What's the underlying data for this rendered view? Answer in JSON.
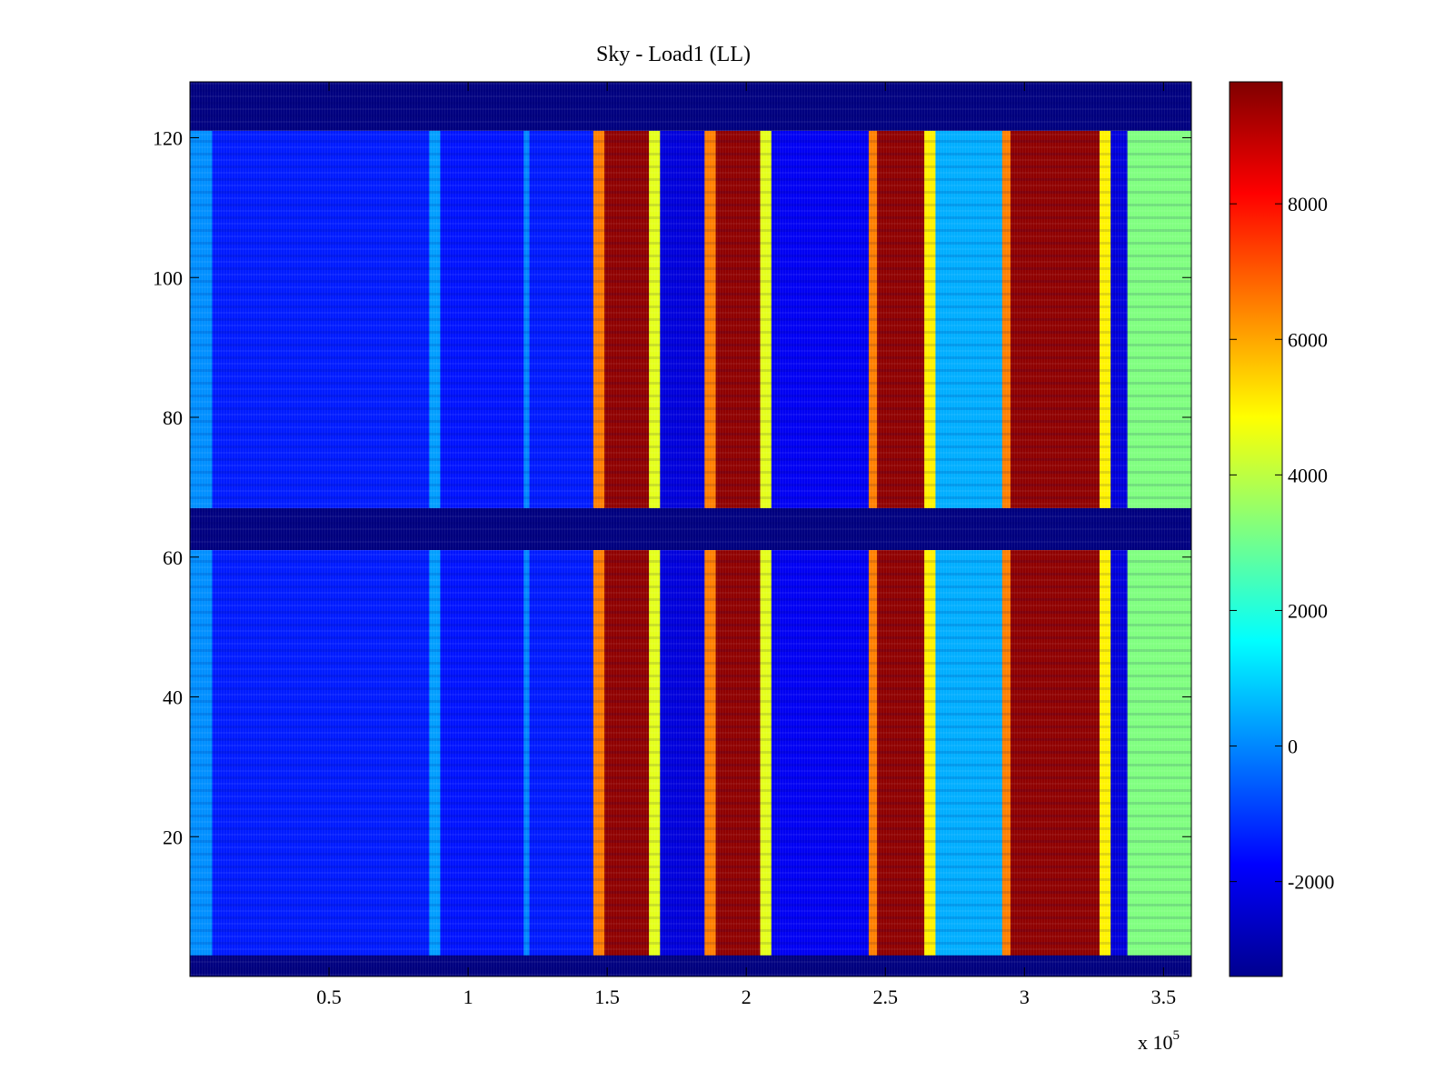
{
  "chart_data": {
    "type": "heatmap",
    "title": "Sky - Load1 (LL)",
    "xlabel": "",
    "ylabel": "",
    "x_multiplier_label": {
      "base": "x 10",
      "exponent": "5"
    },
    "xlim": [
      0,
      360000
    ],
    "ylim": [
      0,
      128
    ],
    "x_ticks": [
      {
        "value": 50000,
        "label": "0.5"
      },
      {
        "value": 100000,
        "label": "1"
      },
      {
        "value": 150000,
        "label": "1.5"
      },
      {
        "value": 200000,
        "label": "2"
      },
      {
        "value": 250000,
        "label": "2.5"
      },
      {
        "value": 300000,
        "label": "3"
      },
      {
        "value": 350000,
        "label": "3.5"
      }
    ],
    "y_ticks": [
      {
        "value": 20,
        "label": "20"
      },
      {
        "value": 40,
        "label": "40"
      },
      {
        "value": 60,
        "label": "60"
      },
      {
        "value": 80,
        "label": "80"
      },
      {
        "value": 100,
        "label": "100"
      },
      {
        "value": 120,
        "label": "120"
      }
    ],
    "colorbar": {
      "colormap": "jet",
      "range": [
        -3400,
        9800
      ],
      "ticks": [
        {
          "value": -2000,
          "label": "-2000"
        },
        {
          "value": 0,
          "label": "0"
        },
        {
          "value": 2000,
          "label": "2000"
        },
        {
          "value": 4000,
          "label": "4000"
        },
        {
          "value": 6000,
          "label": "6000"
        },
        {
          "value": 8000,
          "label": "8000"
        }
      ]
    },
    "masked_channel_rows": [
      [
        0,
        3
      ],
      [
        61,
        67
      ],
      [
        121,
        128
      ]
    ],
    "x_band_values": [
      {
        "x_start": 0,
        "x_end": 8000,
        "value": 100
      },
      {
        "x_start": 8000,
        "x_end": 86000,
        "value": -1400
      },
      {
        "x_start": 86000,
        "x_end": 90000,
        "value": 300
      },
      {
        "x_start": 90000,
        "x_end": 120000,
        "value": -1500
      },
      {
        "x_start": 120000,
        "x_end": 122000,
        "value": 0
      },
      {
        "x_start": 122000,
        "x_end": 145000,
        "value": -1400
      },
      {
        "x_start": 145000,
        "x_end": 149000,
        "value": 6500
      },
      {
        "x_start": 149000,
        "x_end": 165000,
        "value": 9600
      },
      {
        "x_start": 165000,
        "x_end": 169000,
        "value": 4500
      },
      {
        "x_start": 169000,
        "x_end": 185000,
        "value": -2200
      },
      {
        "x_start": 185000,
        "x_end": 189000,
        "value": 6500
      },
      {
        "x_start": 189000,
        "x_end": 205000,
        "value": 9600
      },
      {
        "x_start": 205000,
        "x_end": 209000,
        "value": 4500
      },
      {
        "x_start": 209000,
        "x_end": 244000,
        "value": -1900
      },
      {
        "x_start": 244000,
        "x_end": 247000,
        "value": 6500
      },
      {
        "x_start": 247000,
        "x_end": 264000,
        "value": 9600
      },
      {
        "x_start": 264000,
        "x_end": 268000,
        "value": 5000
      },
      {
        "x_start": 268000,
        "x_end": 292000,
        "value": 500
      },
      {
        "x_start": 292000,
        "x_end": 295000,
        "value": 6500
      },
      {
        "x_start": 295000,
        "x_end": 327000,
        "value": 9600
      },
      {
        "x_start": 327000,
        "x_end": 331000,
        "value": 5000
      },
      {
        "x_start": 331000,
        "x_end": 337000,
        "value": -2200
      },
      {
        "x_start": 337000,
        "x_end": 360000,
        "value": 3200
      }
    ]
  }
}
